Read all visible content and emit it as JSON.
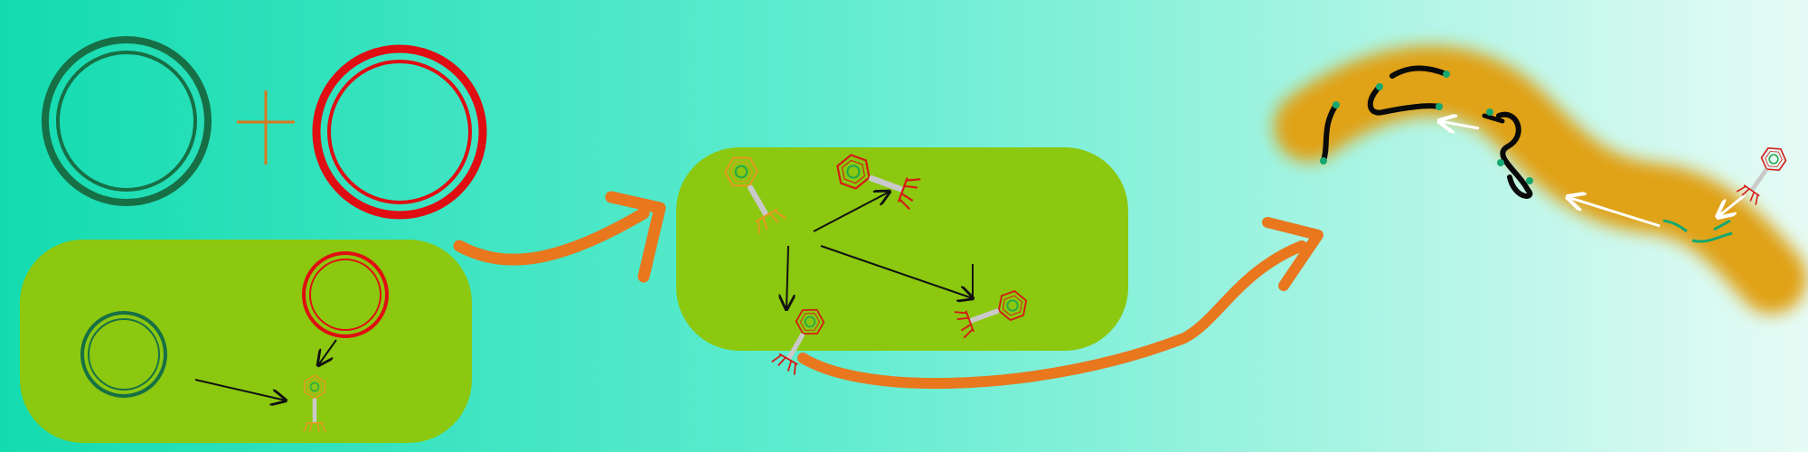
{
  "diagram": {
    "background": {
      "gradient_start": "#13dbb0",
      "gradient_mid": "#5feccf",
      "gradient_end": "#e6fbf5"
    },
    "colors": {
      "cell_fill": "#8bc80f",
      "biofilm_fill": "#e0a213",
      "arrow_orange": "#e8771e",
      "plus_sign": "#d9781f",
      "dark_green_ring": "#176f45",
      "red_ring": "#e00d12",
      "phage_orange": "#e59a22",
      "phage_red": "#d51b16",
      "phage_green_dot": "#2aa84a",
      "tail_grey": "#c9c9c9",
      "dna_black": "#0a0a0a",
      "dna_green_end": "#15a871",
      "white_arrow": "#ffffff",
      "black_arrow": "#111111"
    },
    "icons": {
      "plus": "plus-icon",
      "plasmid": "plasmid-ring-icon",
      "phage": "bacteriophage-icon",
      "dna": "dna-fragment-icon",
      "arrow": "arrow-icon"
    },
    "text": {}
  }
}
